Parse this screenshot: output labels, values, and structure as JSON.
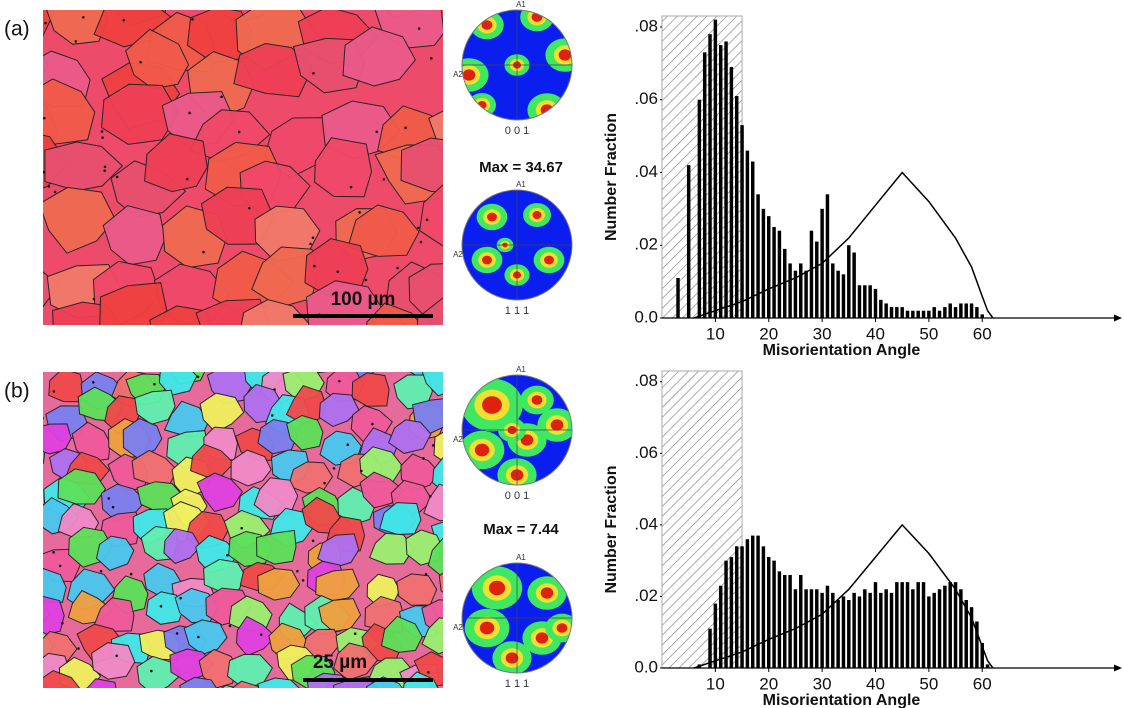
{
  "panels": [
    {
      "label": "(a)",
      "scale_bar": "100 µm",
      "pole_top": {
        "a1": "A1",
        "a2": "A2",
        "label": "0 0 1"
      },
      "max": "Max = 34.67",
      "pole_bottom": {
        "a1": "A1",
        "a2": "A2",
        "label": "1 1 1"
      }
    },
    {
      "label": "(b)",
      "scale_bar": "25 µm",
      "pole_top": {
        "a1": "A1",
        "a2": "A2",
        "label": "0 0 1"
      },
      "max": "Max = 7.44",
      "pole_bottom": {
        "a1": "A1",
        "a2": "A2",
        "label": "1 1 1"
      }
    }
  ],
  "chart_data": [
    {
      "type": "bar",
      "xlabel": "Misorientation Angle",
      "ylabel": "Number Fraction",
      "x": [
        3,
        5,
        7,
        8,
        9,
        10,
        11,
        12,
        13,
        14,
        15,
        16,
        17,
        18,
        19,
        20,
        21,
        22,
        23,
        24,
        25,
        26,
        27,
        28,
        29,
        30,
        31,
        32,
        33,
        34,
        35,
        36,
        37,
        38,
        39,
        40,
        41,
        42,
        43,
        44,
        45,
        46,
        47,
        48,
        49,
        50,
        51,
        52,
        53,
        54,
        55,
        56,
        57,
        58,
        59,
        60
      ],
      "values": [
        0.011,
        0.042,
        0.06,
        0.073,
        0.078,
        0.082,
        0.075,
        0.076,
        0.069,
        0.061,
        0.053,
        0.046,
        0.043,
        0.034,
        0.03,
        0.028,
        0.025,
        0.024,
        0.019,
        0.015,
        0.013,
        0.015,
        0.013,
        0.024,
        0.021,
        0.03,
        0.034,
        0.015,
        0.013,
        0.012,
        0.02,
        0.018,
        0.009,
        0.009,
        0.009,
        0.008,
        0.005,
        0.004,
        0.003,
        0.003,
        0.003,
        0.002,
        0.002,
        0.002,
        0.002,
        0.002,
        0.003,
        0.002,
        0.003,
        0.004,
        0.003,
        0.004,
        0.004,
        0.004,
        0.003,
        0.001
      ],
      "color": "#000000",
      "line": {
        "x": [
          6,
          10,
          15,
          20,
          25,
          30,
          35,
          40,
          45,
          50,
          55,
          58,
          60,
          61,
          62
        ],
        "values": [
          0,
          0.002,
          0.0045,
          0.008,
          0.011,
          0.015,
          0.022,
          0.031,
          0.04,
          0.032,
          0.022,
          0.014,
          0.006,
          0.002,
          0
        ],
        "color": "#000000"
      },
      "shaded_range": [
        0,
        15
      ],
      "xlim": [
        0,
        86
      ],
      "ylim": [
        0,
        0.083
      ],
      "xticks": [
        10,
        20,
        30,
        40,
        50,
        60
      ],
      "yticks": [
        {
          "value": 0,
          "label": "0.0"
        },
        {
          "value": 0.02,
          "label": ".02"
        },
        {
          "value": 0.04,
          "label": ".04"
        },
        {
          "value": 0.06,
          "label": ".06"
        },
        {
          "value": 0.08,
          "label": ".08"
        }
      ]
    },
    {
      "type": "bar",
      "xlabel": "Misorientation Angle",
      "ylabel": "Number Fraction",
      "x": [
        7,
        9,
        10,
        11,
        12,
        13,
        14,
        15,
        16,
        17,
        18,
        19,
        20,
        21,
        22,
        23,
        24,
        25,
        26,
        27,
        28,
        29,
        30,
        31,
        32,
        33,
        34,
        35,
        36,
        37,
        38,
        39,
        40,
        41,
        42,
        43,
        44,
        45,
        46,
        47,
        48,
        49,
        50,
        51,
        52,
        53,
        54,
        55,
        56,
        57,
        58,
        59,
        60,
        61
      ],
      "values": [
        0.001,
        0.011,
        0.018,
        0.023,
        0.03,
        0.031,
        0.034,
        0.034,
        0.036,
        0.037,
        0.037,
        0.034,
        0.031,
        0.03,
        0.027,
        0.026,
        0.026,
        0.022,
        0.026,
        0.022,
        0.022,
        0.022,
        0.021,
        0.023,
        0.021,
        0.019,
        0.02,
        0.019,
        0.021,
        0.02,
        0.022,
        0.021,
        0.024,
        0.021,
        0.022,
        0.021,
        0.024,
        0.024,
        0.024,
        0.022,
        0.024,
        0.024,
        0.02,
        0.021,
        0.022,
        0.023,
        0.024,
        0.024,
        0.022,
        0.019,
        0.017,
        0.013,
        0.007,
        0.001
      ],
      "color": "#000000",
      "line": {
        "x": [
          6,
          10,
          15,
          20,
          25,
          30,
          35,
          40,
          45,
          50,
          55,
          58,
          60,
          61,
          62
        ],
        "values": [
          0,
          0.002,
          0.0045,
          0.008,
          0.011,
          0.015,
          0.022,
          0.031,
          0.04,
          0.032,
          0.022,
          0.014,
          0.006,
          0.002,
          0
        ],
        "color": "#000000"
      },
      "shaded_range": [
        0,
        15
      ],
      "xlim": [
        0,
        86
      ],
      "ylim": [
        0,
        0.083
      ],
      "xticks": [
        10,
        20,
        30,
        40,
        50,
        60
      ],
      "yticks": [
        {
          "value": 0,
          "label": "0.0"
        },
        {
          "value": 0.02,
          "label": ".02"
        },
        {
          "value": 0.04,
          "label": ".04"
        },
        {
          "value": 0.06,
          "label": ".06"
        },
        {
          "value": 0.08,
          "label": ".08"
        }
      ]
    }
  ]
}
